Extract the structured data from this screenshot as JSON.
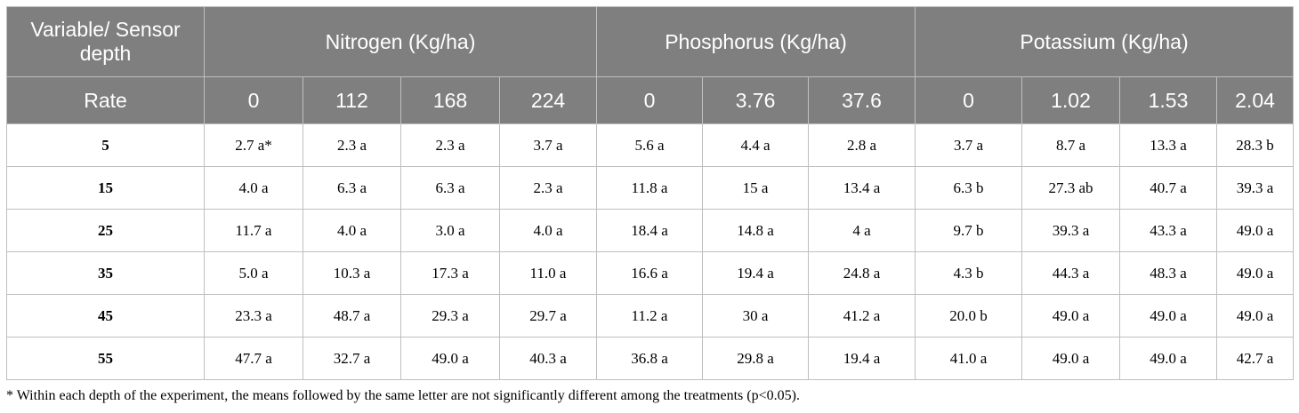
{
  "table": {
    "corner_header": "Variable/ Sensor depth",
    "rate_label": "Rate",
    "groups": [
      {
        "label": "Nitrogen (Kg/ha)",
        "rates": [
          "0",
          "112",
          "168",
          "224"
        ]
      },
      {
        "label": "Phosphorus (Kg/ha)",
        "rates": [
          "0",
          "3.76",
          "37.6"
        ]
      },
      {
        "label": "Potassium (Kg/ha)",
        "rates": [
          "0",
          "1.02",
          "1.53",
          "2.04"
        ]
      }
    ],
    "rows": [
      {
        "depth": "5",
        "cells": [
          "2.7 a*",
          "2.3 a",
          "2.3 a",
          "3.7 a",
          "5.6 a",
          "4.4 a",
          "2.8 a",
          "3.7 a",
          "8.7 a",
          "13.3 a",
          "28.3 b"
        ]
      },
      {
        "depth": "15",
        "cells": [
          "4.0 a",
          "6.3 a",
          "6.3 a",
          "2.3 a",
          "11.8 a",
          "15 a",
          "13.4 a",
          "6.3 b",
          "27.3 ab",
          "40.7 a",
          "39.3 a"
        ]
      },
      {
        "depth": "25",
        "cells": [
          "11.7 a",
          "4.0 a",
          "3.0 a",
          "4.0 a",
          "18.4 a",
          "14.8 a",
          "4 a",
          "9.7 b",
          "39.3 a",
          "43.3 a",
          "49.0 a"
        ]
      },
      {
        "depth": "35",
        "cells": [
          "5.0 a",
          "10.3 a",
          "17.3 a",
          "11.0 a",
          "16.6 a",
          "19.4 a",
          "24.8 a",
          "4.3 b",
          "44.3 a",
          "48.3 a",
          "49.0 a"
        ]
      },
      {
        "depth": "45",
        "cells": [
          "23.3 a",
          "48.7 a",
          "29.3 a",
          "29.7 a",
          "11.2 a",
          "30 a",
          "41.2 a",
          "20.0 b",
          "49.0 a",
          "49.0 a",
          "49.0 a"
        ]
      },
      {
        "depth": "55",
        "cells": [
          "47.7 a",
          "32.7 a",
          "49.0 a",
          "40.3 a",
          "36.8 a",
          "29.8 a",
          "19.4 a",
          "41.0 a",
          "49.0 a",
          "49.0 a",
          "42.7 a"
        ]
      }
    ]
  },
  "footnote": "* Within each depth of the experiment, the means followed by the same letter are not significantly different among the treatments (p<0.05).",
  "colors": {
    "header_bg": "#7f7f7f",
    "header_text": "#ffffff",
    "grid_line": "#bfbfbf"
  }
}
